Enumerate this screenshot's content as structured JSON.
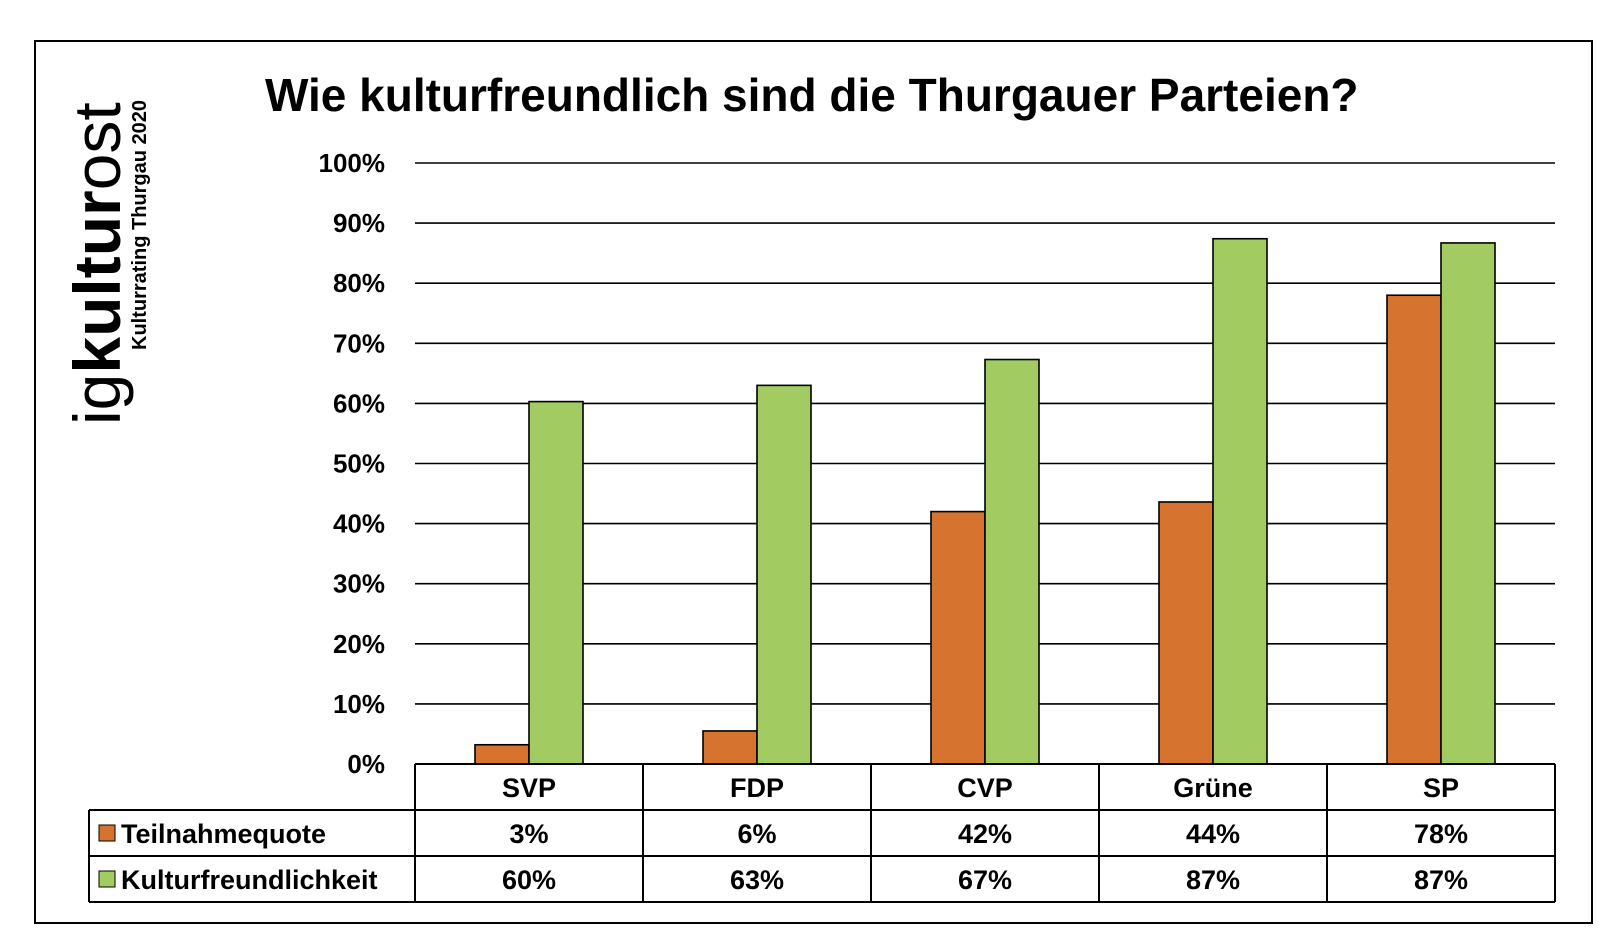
{
  "logo": {
    "prefix": "ig",
    "word": "kultur",
    "suffix": "ost",
    "tagline": "Kulturrating Thurgau 2020"
  },
  "chart_data": {
    "type": "bar",
    "title": "Wie kulturfreundlich sind die Thurgauer Parteien?",
    "categories": [
      "SVP",
      "FDP",
      "CVP",
      "Grüne",
      "SP"
    ],
    "series": [
      {
        "name": "Teilnahmequote",
        "color": "#D6732E",
        "values": [
          3,
          6,
          42,
          44,
          78
        ],
        "bar_values": [
          3.2,
          5.5,
          42,
          43.6,
          78
        ],
        "labels": [
          "3%",
          "6%",
          "42%",
          "44%",
          "78%"
        ]
      },
      {
        "name": "Kulturfreundlichkeit",
        "color": "#A2CC62",
        "values": [
          60,
          63,
          67,
          87,
          87
        ],
        "bar_values": [
          60.3,
          63,
          67.3,
          87.4,
          86.7
        ],
        "labels": [
          "60%",
          "63%",
          "67%",
          "87%",
          "87%"
        ]
      }
    ],
    "ylim": [
      0,
      100
    ],
    "yticks": [
      "0%",
      "10%",
      "20%",
      "30%",
      "40%",
      "50%",
      "60%",
      "70%",
      "80%",
      "90%",
      "100%"
    ],
    "grid": true,
    "legend": "data-table",
    "xlabel": "",
    "ylabel": ""
  }
}
